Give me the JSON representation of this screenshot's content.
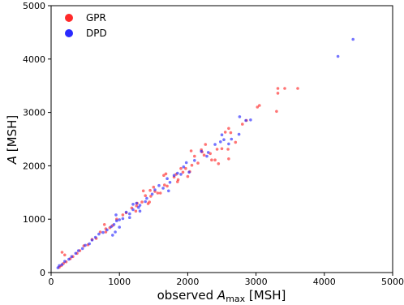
{
  "chart_data": {
    "type": "scatter",
    "xlabel_prefix": "observed ",
    "xlabel_var": "A",
    "xlabel_sub": "max",
    "xlabel_suffix": " [MSH]",
    "ylabel_var": "A",
    "ylabel_suffix": " [MSH]",
    "xlim": [
      0,
      5000
    ],
    "ylim": [
      0,
      5000
    ],
    "x_ticks": [
      0,
      1000,
      2000,
      3000,
      4000,
      5000
    ],
    "y_ticks": [
      0,
      1000,
      2000,
      3000,
      4000,
      5000
    ],
    "grid": false,
    "legend_position": "top-left",
    "series": [
      {
        "name": "GPR",
        "color": "#ff2a2a",
        "points": [
          [
            3420,
            3450
          ],
          [
            3320,
            3450
          ],
          [
            3610,
            3450
          ],
          [
            3320,
            3360
          ],
          [
            3300,
            3020
          ],
          [
            3050,
            3130
          ],
          [
            3020,
            3100
          ],
          [
            2860,
            2850
          ],
          [
            2630,
            2620
          ],
          [
            2550,
            2630
          ],
          [
            2700,
            2440
          ],
          [
            2600,
            2130
          ],
          [
            2590,
            2310
          ],
          [
            2500,
            2320
          ],
          [
            2430,
            2310
          ],
          [
            2260,
            2400
          ],
          [
            2210,
            2260
          ],
          [
            2350,
            2110
          ],
          [
            2200,
            2300
          ],
          [
            2100,
            2180
          ],
          [
            2330,
            2230
          ],
          [
            2400,
            2110
          ],
          [
            2060,
            2010
          ],
          [
            2030,
            1890
          ],
          [
            1970,
            1950
          ],
          [
            2050,
            2280
          ],
          [
            2000,
            1800
          ],
          [
            1930,
            1880
          ],
          [
            1860,
            1740
          ],
          [
            1800,
            1790
          ],
          [
            1830,
            1840
          ],
          [
            1700,
            1620
          ],
          [
            1660,
            1640
          ],
          [
            1680,
            1850
          ],
          [
            1560,
            1490
          ],
          [
            1520,
            1520
          ],
          [
            1500,
            1600
          ],
          [
            1460,
            1430
          ],
          [
            1440,
            1320
          ],
          [
            1380,
            1440
          ],
          [
            1420,
            1290
          ],
          [
            1330,
            1320
          ],
          [
            1350,
            1530
          ],
          [
            1260,
            1300
          ],
          [
            1240,
            1150
          ],
          [
            1180,
            1210
          ],
          [
            1100,
            1120
          ],
          [
            1050,
            1080
          ],
          [
            960,
            1000
          ],
          [
            900,
            880
          ],
          [
            860,
            840
          ],
          [
            800,
            760
          ],
          [
            720,
            760
          ],
          [
            660,
            640
          ],
          [
            600,
            620
          ],
          [
            540,
            520
          ],
          [
            480,
            500
          ],
          [
            420,
            410
          ],
          [
            380,
            360
          ],
          [
            320,
            300
          ],
          [
            280,
            260
          ],
          [
            220,
            200
          ],
          [
            180,
            170
          ],
          [
            150,
            130
          ],
          [
            120,
            100
          ],
          [
            160,
            380
          ],
          [
            200,
            330
          ],
          [
            1900,
            1950
          ],
          [
            1650,
            1820
          ],
          [
            2450,
            2040
          ],
          [
            800,
            820
          ],
          [
            780,
            900
          ],
          [
            1250,
            1250
          ],
          [
            1450,
            1540
          ],
          [
            1600,
            1490
          ],
          [
            2150,
            2050
          ],
          [
            1850,
            1700
          ],
          [
            2600,
            2700
          ],
          [
            2800,
            2780
          ],
          [
            2240,
            2200
          ]
        ]
      },
      {
        "name": "DPD",
        "color": "#2a2aff",
        "points": [
          [
            4420,
            4370
          ],
          [
            4200,
            4050
          ],
          [
            2920,
            2860
          ],
          [
            2850,
            2850
          ],
          [
            2750,
            2590
          ],
          [
            2760,
            2920
          ],
          [
            2640,
            2500
          ],
          [
            2500,
            2580
          ],
          [
            2530,
            2490
          ],
          [
            2400,
            2400
          ],
          [
            2480,
            2450
          ],
          [
            2200,
            2270
          ],
          [
            2280,
            2180
          ],
          [
            2100,
            2100
          ],
          [
            1980,
            2060
          ],
          [
            1940,
            1980
          ],
          [
            1900,
            1840
          ],
          [
            1800,
            1820
          ],
          [
            1740,
            1690
          ],
          [
            1700,
            1760
          ],
          [
            1640,
            1580
          ],
          [
            1580,
            1630
          ],
          [
            1520,
            1550
          ],
          [
            1480,
            1470
          ],
          [
            1400,
            1390
          ],
          [
            1380,
            1330
          ],
          [
            1300,
            1260
          ],
          [
            1250,
            1300
          ],
          [
            1200,
            1180
          ],
          [
            1150,
            1100
          ],
          [
            1100,
            1130
          ],
          [
            1050,
            1010
          ],
          [
            1000,
            990
          ],
          [
            960,
            970
          ],
          [
            920,
            900
          ],
          [
            880,
            860
          ],
          [
            820,
            800
          ],
          [
            760,
            750
          ],
          [
            700,
            720
          ],
          [
            650,
            660
          ],
          [
            600,
            610
          ],
          [
            560,
            540
          ],
          [
            500,
            510
          ],
          [
            460,
            450
          ],
          [
            400,
            410
          ],
          [
            360,
            360
          ],
          [
            300,
            300
          ],
          [
            260,
            250
          ],
          [
            200,
            210
          ],
          [
            160,
            150
          ],
          [
            120,
            130
          ],
          [
            100,
            90
          ],
          [
            900,
            700
          ],
          [
            940,
            760
          ],
          [
            1000,
            850
          ],
          [
            1150,
            1030
          ],
          [
            1300,
            1150
          ],
          [
            2300,
            2250
          ],
          [
            2600,
            2410
          ],
          [
            2020,
            1880
          ],
          [
            1720,
            1530
          ],
          [
            1850,
            1860
          ],
          [
            950,
            1080
          ],
          [
            1200,
            1280
          ],
          [
            1280,
            1220
          ]
        ]
      }
    ]
  }
}
